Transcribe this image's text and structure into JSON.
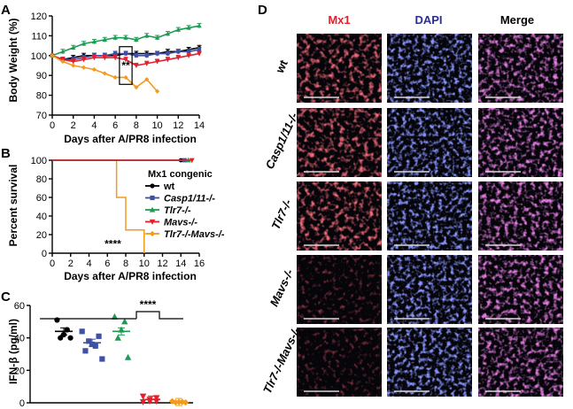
{
  "panel_labels": [
    "A",
    "B",
    "C",
    "D"
  ],
  "colors": {
    "wt": "#000000",
    "casp": "#3f51a6",
    "tlr7": "#1f9a55",
    "mavs": "#e4202c",
    "dko": "#f39a1b"
  },
  "panel_a": {
    "ylabel": "Body Weight (%)",
    "xlabel": "Days after A/PR8 infection",
    "annotation": "**"
  },
  "panel_b": {
    "ylabel": "Percent survival",
    "xlabel": "Days after A/PR8 infection",
    "legend_title": "Mx1 congenic",
    "legend": [
      "wt",
      "Casp1/11-/-",
      "Tlr7-/-",
      "Mavs-/-",
      "Tlr7-/-Mavs-/-"
    ],
    "annotation": "****"
  },
  "panel_c": {
    "ylabel": "IFN-β (pg/ml)",
    "annotation": "****"
  },
  "panel_d": {
    "columns": [
      "Mx1",
      "DAPI",
      "Merge"
    ],
    "rows": [
      "wt",
      "Casp1/11-/-",
      "Tlr7-/-",
      "Mavs-/-",
      "Tlr7-/-Mavs-/-"
    ]
  },
  "chart_data": [
    {
      "type": "line",
      "panel": "A",
      "ylabel": "Body Weight (%)",
      "xlabel": "Days after A/PR8 infection",
      "xlim": [
        0,
        14
      ],
      "ylim": [
        70,
        120
      ],
      "xticks": [
        0,
        2,
        4,
        6,
        8,
        10,
        12,
        14
      ],
      "yticks": [
        70,
        80,
        90,
        100,
        110,
        120
      ],
      "series": [
        {
          "name": "wt",
          "x": [
            0,
            1,
            2,
            3,
            4,
            5,
            6,
            7,
            8,
            9,
            10,
            11,
            12,
            13,
            14
          ],
          "y": [
            100,
            98,
            99,
            100,
            100,
            100,
            100,
            101,
            101,
            101,
            101,
            102,
            102,
            103,
            104
          ]
        },
        {
          "name": "Casp1/11-/-",
          "x": [
            0,
            1,
            2,
            3,
            4,
            5,
            6,
            7,
            8,
            9,
            10,
            11,
            12,
            13,
            14
          ],
          "y": [
            100,
            98,
            98,
            99,
            100,
            100,
            101,
            101,
            100,
            100,
            101,
            101,
            102,
            102,
            103
          ]
        },
        {
          "name": "Tlr7-/-",
          "x": [
            0,
            1,
            2,
            3,
            4,
            5,
            6,
            7,
            8,
            9,
            10,
            11,
            12,
            13,
            14
          ],
          "y": [
            100,
            102,
            104,
            106,
            107,
            108,
            109,
            109,
            108,
            110,
            109,
            111,
            113,
            114,
            115
          ]
        },
        {
          "name": "Mavs-/-",
          "x": [
            0,
            1,
            2,
            3,
            4,
            5,
            6,
            7,
            8,
            9,
            10,
            11,
            12,
            13,
            14
          ],
          "y": [
            100,
            98,
            97,
            98,
            99,
            99,
            99,
            98,
            95,
            96,
            97,
            98,
            99,
            100,
            101
          ]
        },
        {
          "name": "Tlr7-/-Mavs-/-",
          "x": [
            0,
            1,
            2,
            3,
            4,
            5,
            6,
            7,
            8,
            9,
            10
          ],
          "y": [
            100,
            97,
            95,
            94,
            93,
            91,
            89,
            89,
            84,
            88,
            82
          ]
        }
      ]
    },
    {
      "type": "line",
      "panel": "B",
      "ylabel": "Percent survival",
      "xlabel": "Days after A/PR8 infection",
      "xlim": [
        0,
        16
      ],
      "ylim": [
        0,
        100
      ],
      "xticks": [
        0,
        2,
        4,
        6,
        8,
        10,
        12,
        14,
        16
      ],
      "yticks": [
        0,
        20,
        40,
        60,
        80,
        100
      ],
      "series": [
        {
          "name": "wt",
          "x": [
            0,
            14
          ],
          "y": [
            100,
            100
          ]
        },
        {
          "name": "Casp1/11-/-",
          "x": [
            0,
            14.4
          ],
          "y": [
            100,
            100
          ]
        },
        {
          "name": "Tlr7-/-",
          "x": [
            0,
            14.8
          ],
          "y": [
            100,
            100
          ]
        },
        {
          "name": "Mavs-/-",
          "x": [
            0,
            15.2
          ],
          "y": [
            100,
            100
          ]
        },
        {
          "name": "Tlr7-/-Mavs-/-",
          "x": [
            0,
            7,
            7,
            8,
            8,
            10,
            10
          ],
          "y": [
            100,
            100,
            60,
            60,
            25,
            25,
            0
          ]
        }
      ]
    },
    {
      "type": "scatter",
      "panel": "C",
      "ylabel": "IFN-β (pg/ml)",
      "ylim": [
        0,
        60
      ],
      "yticks": [
        0,
        20,
        40,
        60
      ],
      "series": [
        {
          "name": "wt",
          "values": [
            51,
            45,
            42,
            40,
            40
          ],
          "mean": 44
        },
        {
          "name": "Casp1/11-/-",
          "values": [
            44,
            41,
            38,
            36,
            35,
            32,
            27
          ],
          "mean": 37
        },
        {
          "name": "Tlr7-/-",
          "values": [
            53,
            50,
            45,
            40,
            28
          ],
          "mean": 44
        },
        {
          "name": "Mavs-/-",
          "values": [
            4,
            3,
            2,
            1,
            1,
            0.5
          ],
          "mean": 2
        },
        {
          "name": "Tlr7-/-Mavs-/-",
          "values": [
            1,
            0.5,
            0.5,
            0.3,
            0.2
          ],
          "mean": 0.5
        }
      ]
    }
  ]
}
